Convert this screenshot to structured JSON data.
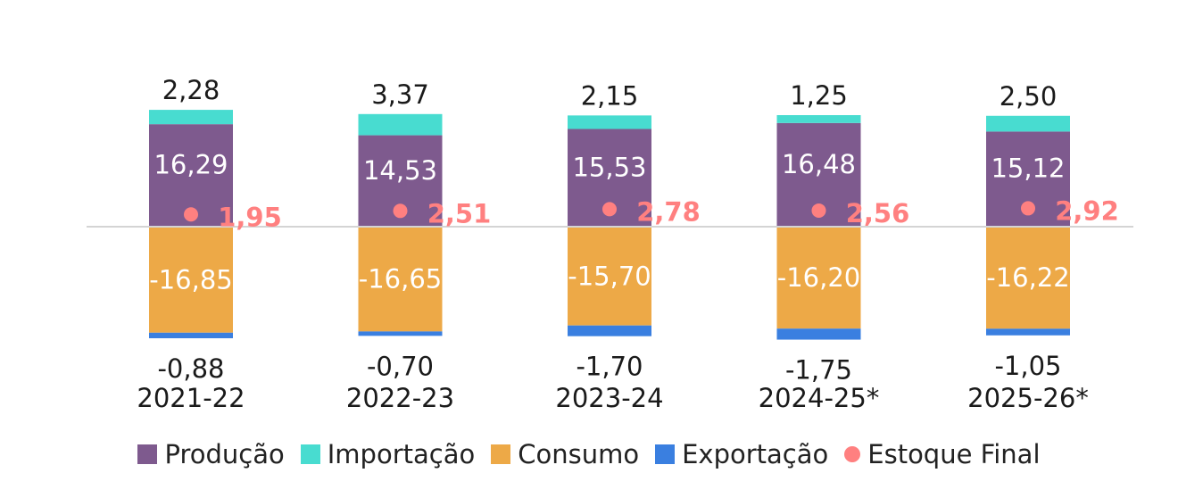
{
  "chart_data": {
    "type": "bar",
    "stacked": true,
    "categories": [
      "2021-22",
      "2022-23",
      "2023-24",
      "2024-25*",
      "2025-26*"
    ],
    "series": [
      {
        "name": "Produção",
        "values": [
          16.29,
          14.53,
          15.53,
          16.48,
          15.12
        ],
        "labels": [
          "16,29",
          "14,53",
          "15,53",
          "16,48",
          "15,12"
        ],
        "color": "#7E5A8E"
      },
      {
        "name": "Importação",
        "values": [
          2.28,
          3.37,
          2.15,
          1.25,
          2.5
        ],
        "labels": [
          "2,28",
          "3,37",
          "2,15",
          "1,25",
          "2,50"
        ],
        "color": "#48DCD0"
      },
      {
        "name": "Consumo",
        "values": [
          -16.85,
          -16.65,
          -15.7,
          -16.2,
          -16.22
        ],
        "labels": [
          "-16,85",
          "-16,65",
          "-15,70",
          "-16,20",
          "-16,22"
        ],
        "color": "#EDA947"
      },
      {
        "name": "Exportação",
        "values": [
          -0.88,
          -0.7,
          -1.7,
          -1.75,
          -1.05
        ],
        "labels": [
          "-0,88",
          "-0,70",
          "-1,70",
          "-1,75",
          "-1,05"
        ],
        "color": "#3A7FE0"
      },
      {
        "name": "Estoque Final",
        "type": "scatter",
        "values": [
          1.95,
          2.51,
          2.78,
          2.56,
          2.92
        ],
        "labels": [
          "1,95",
          "2,51",
          "2,78",
          "2,56",
          "2,92"
        ],
        "color": "#FF8080"
      }
    ],
    "grid": false,
    "legend_position": "bottom"
  }
}
